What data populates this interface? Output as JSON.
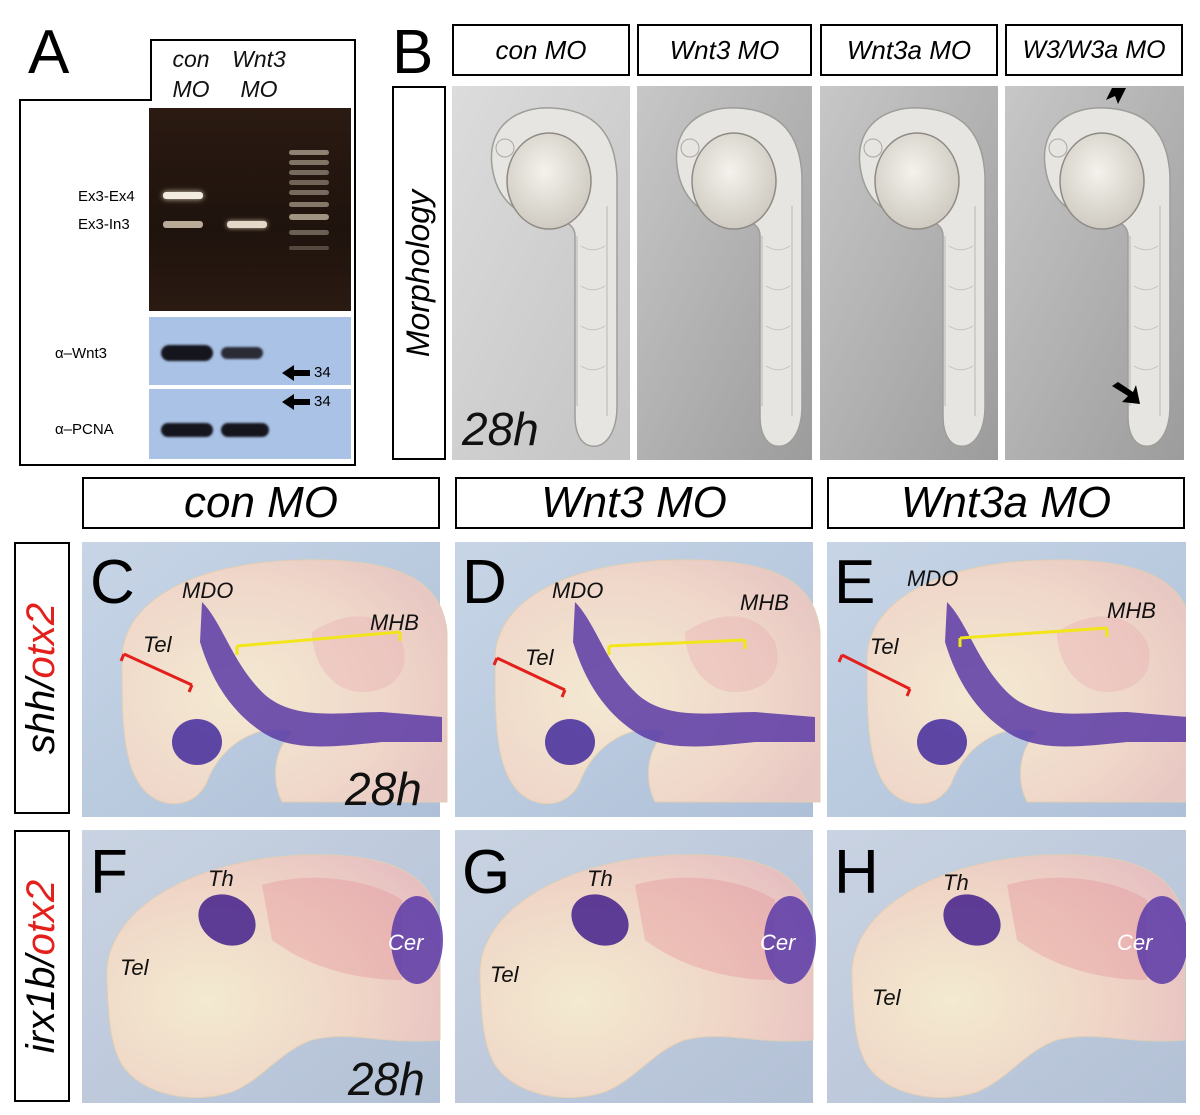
{
  "panels": {
    "A": "A",
    "B": "B",
    "C": "C",
    "D": "D",
    "E": "E",
    "F": "F",
    "G": "G",
    "H": "H"
  },
  "panel_a": {
    "lane1": "con\nMO",
    "lane1_line1": "con",
    "lane1_line2": "MO",
    "lane2_line1": "Wnt3",
    "lane2_line2": "MO",
    "band_upper": "Ex3-Ex4",
    "band_lower": "Ex3-In3",
    "blot1_label": "α–Wnt3",
    "blot2_label": "α–PCNA",
    "marker1": "34",
    "marker2": "34"
  },
  "panel_b": {
    "titles": [
      "con MO",
      "Wnt3 MO",
      "Wnt3a MO",
      "W3/W3a MO"
    ],
    "row_label": "Morphology",
    "time": "28h"
  },
  "panel_ce": {
    "titles": [
      "con MO",
      "Wnt3 MO",
      "Wnt3a MO"
    ],
    "row_label_part1": "shh/",
    "row_label_part2": "otx2",
    "mdo": "MDO",
    "mhb": "MHB",
    "tel": "Tel",
    "time": "28h"
  },
  "panel_fh": {
    "row_label_part1": "irx1b/",
    "row_label_part2": "otx2",
    "th": "Th",
    "cer": "Cer",
    "tel": "Tel",
    "time": "28h"
  },
  "colors": {
    "red_label": "#e3201b",
    "yellow_bracket": "#f2e51a",
    "red_bracket": "#e3201b",
    "stain_purple": "#4a2a9a",
    "stain_pink": "#e7a3a8"
  }
}
